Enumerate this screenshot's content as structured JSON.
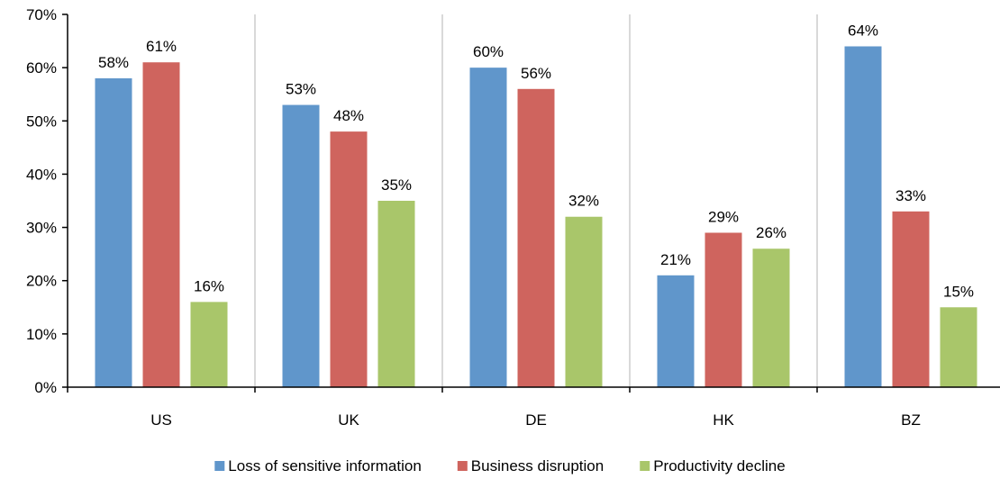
{
  "chart_data": {
    "type": "bar",
    "categories": [
      "US",
      "UK",
      "DE",
      "HK",
      "BZ"
    ],
    "series": [
      {
        "name": "Loss of sensitive information",
        "color": "#6096cb",
        "values": [
          58,
          53,
          60,
          21,
          64
        ]
      },
      {
        "name": "Business disruption",
        "color": "#cf645e",
        "values": [
          61,
          48,
          56,
          29,
          33
        ]
      },
      {
        "name": "Productivity decline",
        "color": "#a9c66a",
        "values": [
          16,
          35,
          32,
          26,
          15
        ]
      }
    ],
    "ylim": [
      0,
      70
    ],
    "yticks": [
      0,
      10,
      20,
      30,
      40,
      50,
      60,
      70
    ],
    "ytick_suffix": "%",
    "data_label_suffix": "%",
    "grid": "vertical separators between categories",
    "legend": "bottom-center",
    "title": "",
    "xlabel": "",
    "ylabel": ""
  }
}
